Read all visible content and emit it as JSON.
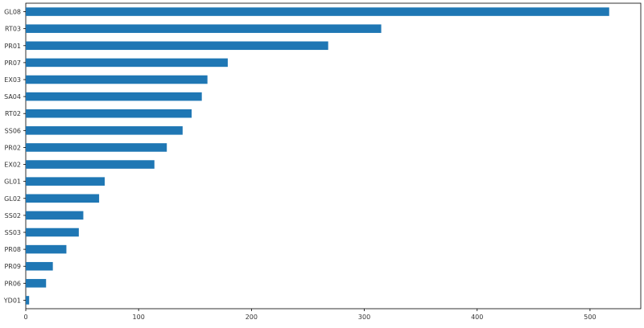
{
  "chart_data": {
    "type": "bar",
    "orientation": "horizontal",
    "categories": [
      "GL08",
      "RT03",
      "PR01",
      "PR07",
      "EX03",
      "SA04",
      "RT02",
      "SS06",
      "PR02",
      "EX02",
      "GL01",
      "GL02",
      "SS02",
      "SS03",
      "PR08",
      "PR09",
      "PR06",
      "YD01"
    ],
    "values": [
      517,
      315,
      268,
      179,
      161,
      156,
      147,
      139,
      125,
      114,
      70,
      65,
      51,
      47,
      36,
      24,
      18,
      3
    ],
    "xlim": [
      0,
      545
    ],
    "xticks": [
      0,
      100,
      200,
      300,
      400,
      500
    ],
    "bar_color": "#1f77b4",
    "grid": false,
    "title": "",
    "xlabel": "",
    "ylabel": ""
  }
}
